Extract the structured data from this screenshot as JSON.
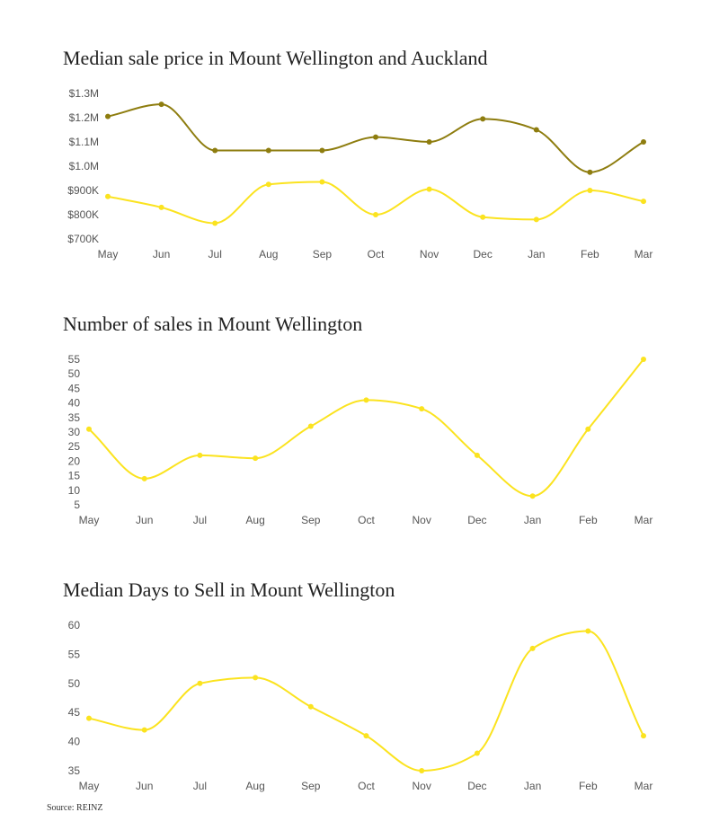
{
  "colors": {
    "mount_wellington": "#fbe31f",
    "auckland": "#8e7d0f"
  },
  "chart_data": [
    {
      "type": "line",
      "title": "Median sale price in Mount Wellington and Auckland",
      "categories": [
        "May",
        "Jun",
        "Jul",
        "Aug",
        "Sep",
        "Oct",
        "Nov",
        "Dec",
        "Jan",
        "Feb",
        "Mar"
      ],
      "ylim": [
        700000,
        1300000
      ],
      "yticks": [
        700000,
        800000,
        900000,
        1000000,
        1100000,
        1200000,
        1300000
      ],
      "ytick_labels": [
        "$700K",
        "$800K",
        "$900K",
        "$1.0M",
        "$1.1M",
        "$1.2M",
        "$1.3M"
      ],
      "series": [
        {
          "name": "Auckland",
          "color": "#8e7d0f",
          "values": [
            1205000,
            1255000,
            1065000,
            1065000,
            1065000,
            1120000,
            1100000,
            1195000,
            1150000,
            975000,
            1100000
          ]
        },
        {
          "name": "Mount Wellington",
          "color": "#fbe31f",
          "values": [
            875000,
            830000,
            765000,
            925000,
            935000,
            800000,
            905000,
            790000,
            780000,
            900000,
            855000
          ]
        }
      ]
    },
    {
      "type": "line",
      "title": "Number of sales in Mount Wellington",
      "categories": [
        "May",
        "Jun",
        "Jul",
        "Aug",
        "Sep",
        "Oct",
        "Nov",
        "Dec",
        "Jan",
        "Feb",
        "Mar"
      ],
      "ylim": [
        5,
        55
      ],
      "yticks": [
        5,
        10,
        15,
        20,
        25,
        30,
        35,
        40,
        45,
        50,
        55
      ],
      "ytick_labels": [
        "5",
        "10",
        "15",
        "20",
        "25",
        "30",
        "35",
        "40",
        "45",
        "50",
        "55"
      ],
      "series": [
        {
          "name": "Mount Wellington",
          "color": "#fbe31f",
          "values": [
            31,
            14,
            22,
            21,
            32,
            41,
            38,
            22,
            8,
            31,
            55
          ]
        }
      ]
    },
    {
      "type": "line",
      "title": "Median Days to Sell in Mount Wellington",
      "categories": [
        "May",
        "Jun",
        "Jul",
        "Aug",
        "Sep",
        "Oct",
        "Nov",
        "Dec",
        "Jan",
        "Feb",
        "Mar"
      ],
      "ylim": [
        35,
        60
      ],
      "yticks": [
        35,
        40,
        45,
        50,
        55,
        60
      ],
      "ytick_labels": [
        "35",
        "40",
        "45",
        "50",
        "55",
        "60"
      ],
      "series": [
        {
          "name": "Mount Wellington",
          "color": "#fbe31f",
          "values": [
            44,
            42,
            50,
            51,
            46,
            41,
            35,
            38,
            56,
            59,
            41
          ]
        }
      ]
    }
  ],
  "source": "Source: REINZ"
}
